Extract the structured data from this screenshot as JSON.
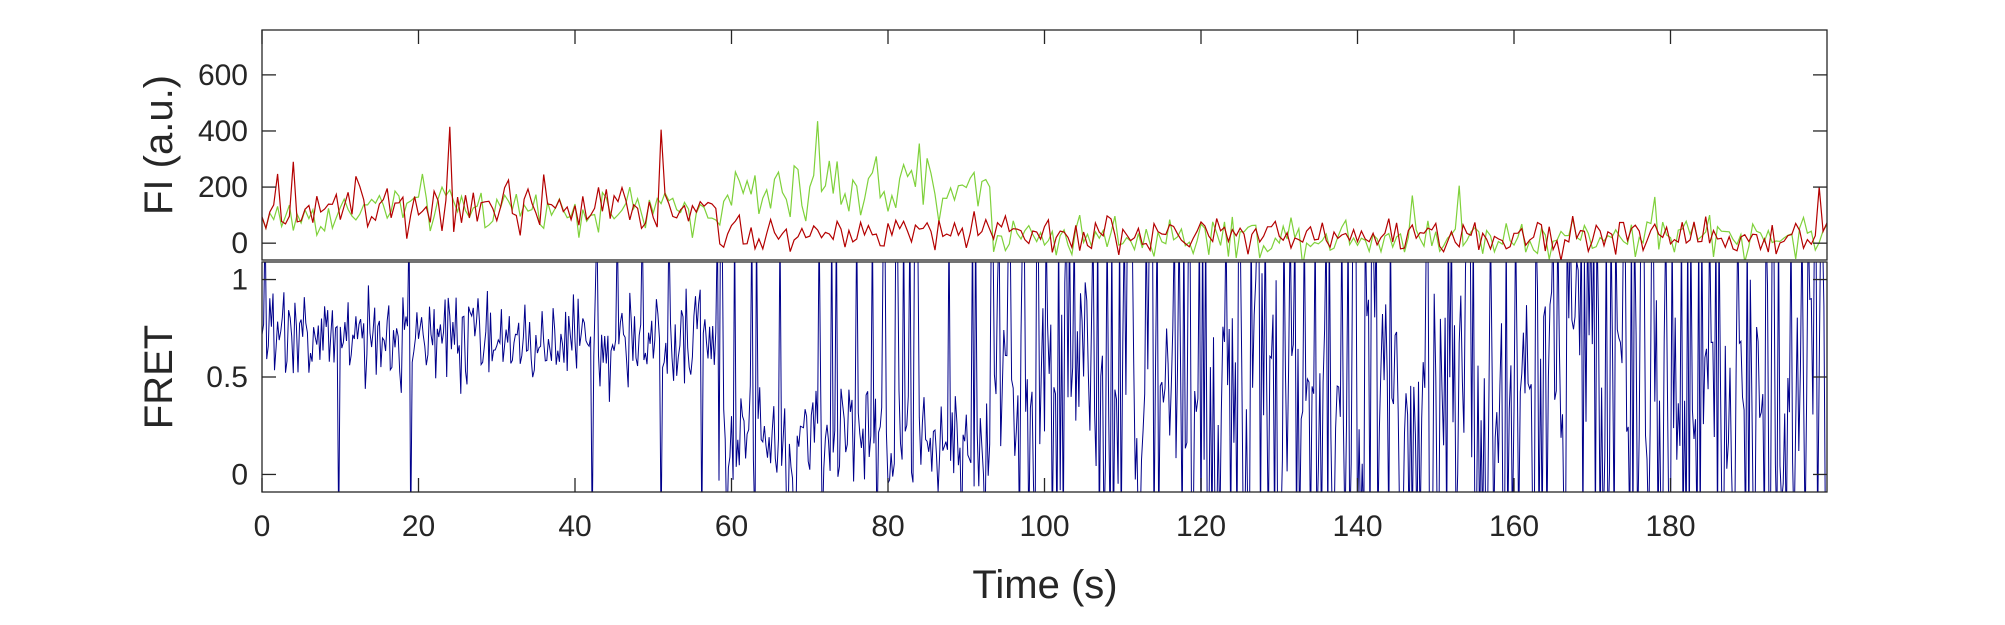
{
  "chart_data": [
    {
      "type": "line",
      "panel": "top",
      "title": "",
      "xlabel": "",
      "ylabel": "FI (a.u.)",
      "xlim": [
        0,
        200
      ],
      "ylim": [
        -60,
        760
      ],
      "yticks": [
        0,
        200,
        400,
        600
      ],
      "ytick_labels": [
        "0",
        "200",
        "400",
        "600"
      ],
      "grid": false,
      "legend": "none",
      "sampling": "0.5 s samples approximated from the trace envelope",
      "series": [
        {
          "color": "#7FD13B",
          "x_range": [
            0,
            200
          ],
          "segments": [
            {
              "t": [
                0,
                10
              ],
              "mean": 90,
              "noise": 45
            },
            {
              "t": [
                10,
                35
              ],
              "mean": 130,
              "noise": 45
            },
            {
              "t": [
                35,
                58
              ],
              "mean": 120,
              "noise": 40
            },
            {
              "t": [
                58,
                70
              ],
              "mean": 170,
              "noise": 55
            },
            {
              "t": [
                70,
                93
              ],
              "mean": 200,
              "noise": 65
            },
            {
              "t": [
                93,
                200
              ],
              "mean": 25,
              "noise": 38
            }
          ],
          "spikes": [
            [
              71,
              435
            ],
            [
              84,
              355
            ],
            [
              82,
              280
            ],
            [
              153,
              205
            ],
            [
              147,
              170
            ],
            [
              178,
              165
            ]
          ]
        },
        {
          "color": "#B40000",
          "x_range": [
            0,
            200
          ],
          "segments": [
            {
              "t": [
                0,
                10
              ],
              "mean": 130,
              "noise": 50
            },
            {
              "t": [
                10,
                35
              ],
              "mean": 150,
              "noise": 55
            },
            {
              "t": [
                35,
                58
              ],
              "mean": 130,
              "noise": 50
            },
            {
              "t": [
                58,
                93
              ],
              "mean": 35,
              "noise": 30
            },
            {
              "t": [
                93,
                200
              ],
              "mean": 25,
              "noise": 32
            }
          ],
          "spikes": [
            [
              24,
              415
            ],
            [
              51,
              405
            ],
            [
              4,
              290
            ],
            [
              36,
              245
            ],
            [
              199,
              200
            ],
            [
              61,
              100
            ]
          ]
        }
      ]
    },
    {
      "type": "line",
      "panel": "bottom",
      "title": "",
      "xlabel": "Time (s)",
      "ylabel": "FRET",
      "xlim": [
        0,
        200
      ],
      "ylim": [
        -0.09,
        1.09
      ],
      "xticks": [
        0,
        20,
        40,
        60,
        80,
        100,
        120,
        140,
        160,
        180
      ],
      "xtick_labels": [
        "0",
        "20",
        "40",
        "60",
        "80",
        "100",
        "120",
        "140",
        "160",
        "180"
      ],
      "yticks": [
        0,
        0.5,
        1
      ],
      "ytick_labels": [
        "0",
        "0.5",
        "1"
      ],
      "grid": false,
      "legend": "none",
      "series": [
        {
          "color": "#00008B",
          "x_range": [
            0,
            200
          ],
          "segments": [
            {
              "t": [
                0,
                58
              ],
              "mean": 0.68,
              "noise": 0.12,
              "excursion_rate": 0.05
            },
            {
              "t": [
                58,
                93
              ],
              "mean": 0.18,
              "noise": 0.15,
              "excursion_rate": 0.12
            },
            {
              "t": [
                93,
                200
              ],
              "mean": 0.45,
              "noise": 0.3,
              "excursion_rate": 0.45
            }
          ]
        }
      ]
    }
  ]
}
